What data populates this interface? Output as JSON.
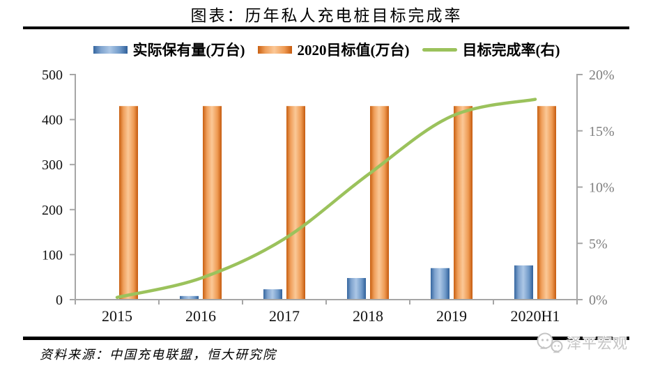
{
  "title": "图表：历年私人充电桩目标完成率",
  "legend": {
    "items": [
      {
        "label": "实际保有量(万台)",
        "swatch": "blue-gradient-bar"
      },
      {
        "label": "2020目标值(万台)",
        "swatch": "orange-gradient-bar"
      },
      {
        "label": "目标完成率(右)",
        "swatch": "green-line"
      }
    ]
  },
  "chart_data": {
    "type": "bar",
    "subtype": "grouped-bars-with-line-overlay-dual-axis",
    "categories": [
      "2015",
      "2016",
      "2017",
      "2018",
      "2019",
      "2020H1"
    ],
    "series": [
      {
        "name": "实际保有量(万台)",
        "type": "bar",
        "axis": "left",
        "color": "#4F81BD",
        "values": [
          0.8,
          8,
          23,
          48,
          70,
          76
        ]
      },
      {
        "name": "2020目标值(万台)",
        "type": "bar",
        "axis": "left",
        "color": "#F79646",
        "values": [
          430,
          430,
          430,
          430,
          430,
          430
        ]
      },
      {
        "name": "目标完成率(右)",
        "type": "line",
        "axis": "right",
        "color": "#9BC25C",
        "unit": "%",
        "values": [
          0.2,
          1.9,
          5.4,
          11.1,
          16.3,
          17.8
        ]
      }
    ],
    "left_axis": {
      "min": 0,
      "max": 500,
      "tick_values": [
        0,
        100,
        200,
        300,
        400,
        500
      ],
      "tick_labels": [
        "0",
        "100",
        "200",
        "300",
        "400",
        "500"
      ]
    },
    "right_axis": {
      "min": 0,
      "max": 20,
      "tick_values": [
        0,
        5,
        10,
        15,
        20
      ],
      "tick_labels": [
        "0%",
        "5%",
        "10%",
        "15%",
        "20%"
      ]
    },
    "grid": false,
    "legend_position": "top",
    "xlabel": "",
    "ylabel": ""
  },
  "source": {
    "text": "资料来源：中国充电联盟，恒大研究院"
  },
  "watermark": {
    "text": "泽平宏观",
    "logo": "chat-bubble-faces-logo"
  },
  "colors": {
    "bar_actual": "#4F81BD",
    "bar_target": "#F79646",
    "completion_line": "#9BC25C",
    "axis": "#A6A6A6",
    "left_axis_labels": "#111111",
    "right_axis_labels": "#7F7F7F",
    "x_axis_labels": "#111111",
    "rule": "#000000",
    "watermark": "#C4C4C4"
  }
}
